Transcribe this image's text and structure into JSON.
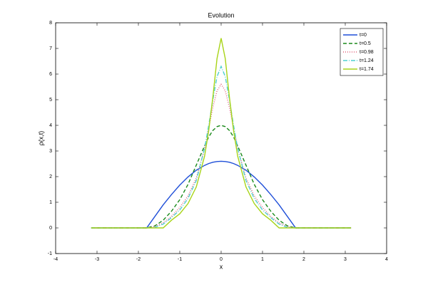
{
  "chart_data": {
    "type": "line",
    "title": "Evolution",
    "x_label": "x",
    "y_label": "ρ(x,t)",
    "x": [
      -3.14,
      -1.8,
      -1.6,
      -1.4,
      -1.2,
      -1,
      -0.8,
      -0.6,
      -0.4,
      -0.3,
      -0.2,
      -0.1,
      0,
      0.1,
      0.2,
      0.3,
      0.4,
      0.6,
      0.8,
      1,
      1.2,
      1.4,
      1.6,
      1.8,
      3.14
    ],
    "series": [
      {
        "name": "t=0",
        "color": "#1f4fd8",
        "style": "solid",
        "values": [
          0,
          0,
          0.45,
          0.9,
          1.3,
          1.67,
          1.99,
          2.25,
          2.44,
          2.51,
          2.56,
          2.59,
          2.6,
          2.59,
          2.56,
          2.51,
          2.44,
          2.25,
          1.99,
          1.67,
          1.3,
          0.9,
          0.45,
          0,
          0
        ]
      },
      {
        "name": "t=0.5",
        "color": "#1a8a1a",
        "style": "dashed",
        "values": [
          0,
          0,
          0.08,
          0.3,
          0.65,
          1.1,
          1.7,
          2.45,
          3.2,
          3.55,
          3.8,
          3.95,
          4,
          3.95,
          3.8,
          3.55,
          3.2,
          2.45,
          1.7,
          1.1,
          0.65,
          0.3,
          0.08,
          0,
          0
        ]
      },
      {
        "name": "t=0.98",
        "color": "#e0607a",
        "style": "dotted",
        "values": [
          0,
          0,
          0.05,
          0.2,
          0.45,
          0.8,
          1.25,
          1.95,
          3.1,
          3.9,
          4.7,
          5.35,
          5.6,
          5.35,
          4.7,
          3.9,
          3.1,
          1.95,
          1.25,
          0.8,
          0.45,
          0.2,
          0.05,
          0,
          0
        ]
      },
      {
        "name": "t=1.24",
        "color": "#4fd0d0",
        "style": "dashdot",
        "values": [
          0,
          0,
          0.02,
          0.15,
          0.4,
          0.7,
          1.15,
          1.85,
          3.1,
          4,
          5,
          5.9,
          6.3,
          5.9,
          5,
          4,
          3.1,
          1.85,
          1.15,
          0.7,
          0.4,
          0.15,
          0.02,
          0,
          0
        ]
      },
      {
        "name": "t=1.74",
        "color": "#a8d418",
        "style": "solid",
        "values": [
          0,
          0,
          0,
          0,
          0.3,
          0.55,
          0.95,
          1.6,
          2.8,
          3.8,
          5.1,
          6.6,
          7.4,
          6.6,
          5.1,
          3.8,
          2.8,
          1.6,
          0.95,
          0.55,
          0.3,
          0,
          0,
          0,
          0
        ]
      }
    ],
    "xlim": [
      -4,
      4
    ],
    "ylim": [
      -1,
      8
    ],
    "xticks": [
      -4,
      -3,
      -2,
      -1,
      0,
      1,
      2,
      3,
      4
    ],
    "yticks": [
      -1,
      0,
      1,
      2,
      3,
      4,
      5,
      6,
      7,
      8
    ],
    "legend": "top-right"
  }
}
